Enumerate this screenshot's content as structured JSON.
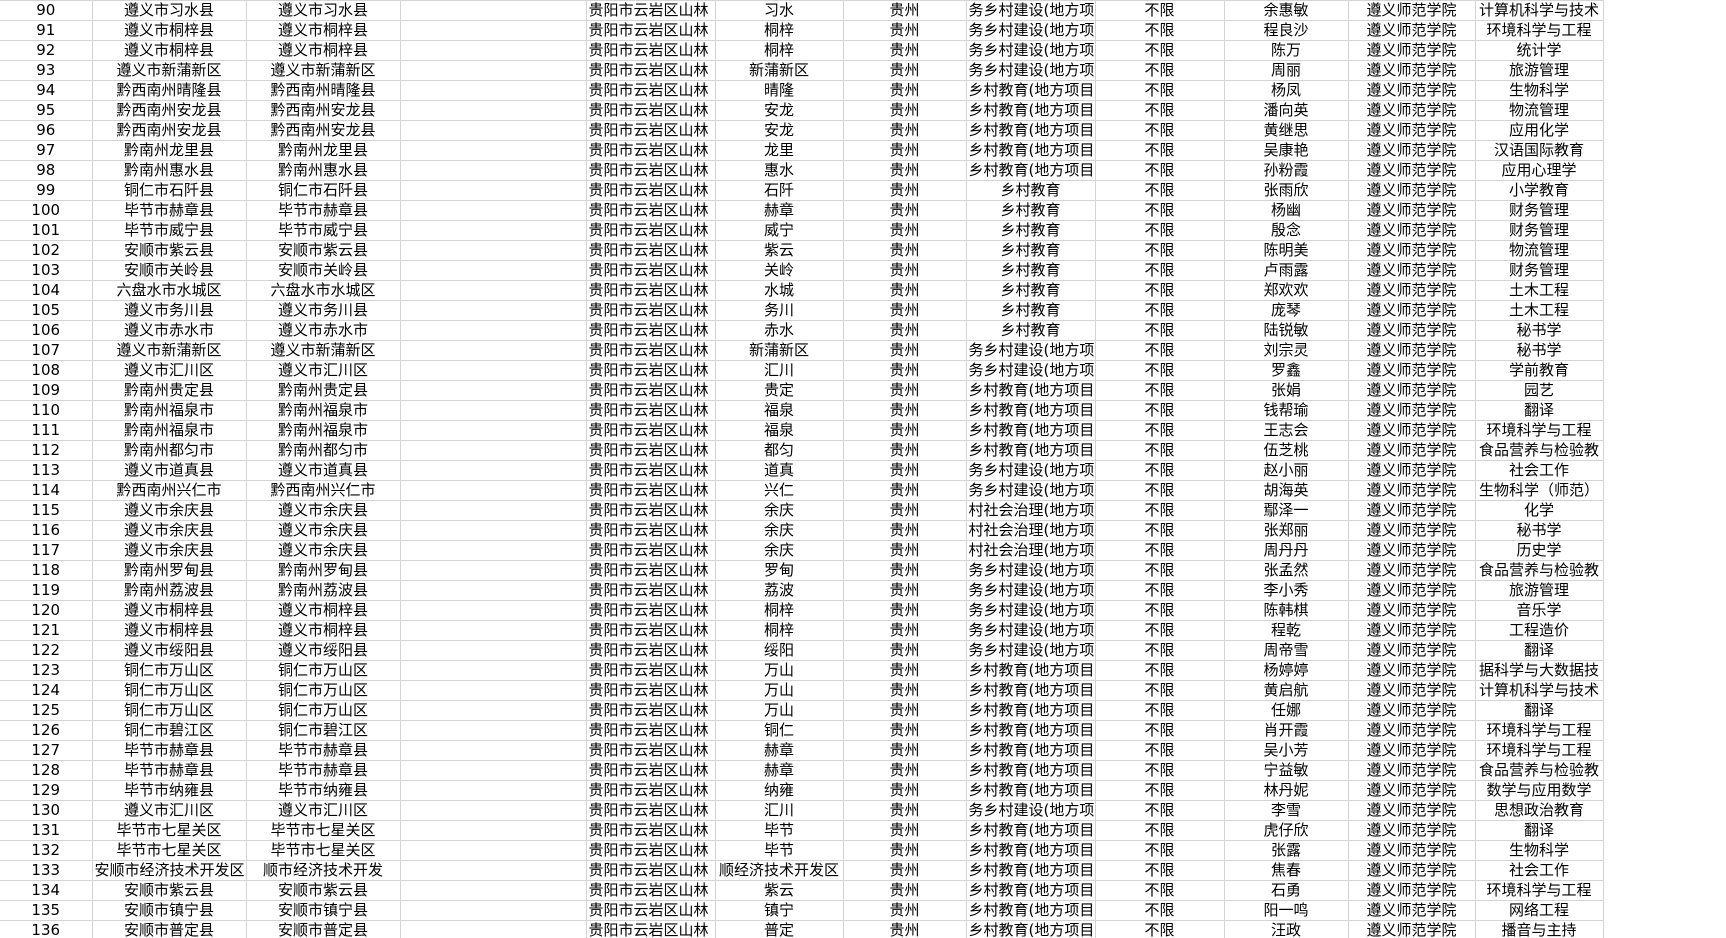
{
  "table": {
    "rows": [
      [
        90,
        "遵义市习水县",
        "遵义市习水县",
        "贵阳市云岩区山林",
        "习水",
        "贵州",
        "务乡村建设(地方项",
        "不限",
        "余惠敏",
        "遵义师范学院",
        "计算机科学与技术"
      ],
      [
        91,
        "遵义市桐梓县",
        "遵义市桐梓县",
        "贵阳市云岩区山林",
        "桐梓",
        "贵州",
        "务乡村建设(地方项",
        "不限",
        "程良沙",
        "遵义师范学院",
        "环境科学与工程"
      ],
      [
        92,
        "遵义市桐梓县",
        "遵义市桐梓县",
        "贵阳市云岩区山林",
        "桐梓",
        "贵州",
        "务乡村建设(地方项",
        "不限",
        "陈万",
        "遵义师范学院",
        "统计学"
      ],
      [
        93,
        "遵义市新蒲新区",
        "遵义市新蒲新区",
        "贵阳市云岩区山林",
        "新蒲新区",
        "贵州",
        "务乡村建设(地方项",
        "不限",
        "周丽",
        "遵义师范学院",
        "旅游管理"
      ],
      [
        94,
        "黔西南州晴隆县",
        "黔西南州晴隆县",
        "贵阳市云岩区山林",
        "晴隆",
        "贵州",
        "乡村教育(地方项目",
        "不限",
        "杨凤",
        "遵义师范学院",
        "生物科学"
      ],
      [
        95,
        "黔西南州安龙县",
        "黔西南州安龙县",
        "贵阳市云岩区山林",
        "安龙",
        "贵州",
        "乡村教育(地方项目",
        "不限",
        "潘向英",
        "遵义师范学院",
        "物流管理"
      ],
      [
        96,
        "黔西南州安龙县",
        "黔西南州安龙县",
        "贵阳市云岩区山林",
        "安龙",
        "贵州",
        "乡村教育(地方项目",
        "不限",
        "黄继思",
        "遵义师范学院",
        "应用化学"
      ],
      [
        97,
        "黔南州龙里县",
        "黔南州龙里县",
        "贵阳市云岩区山林",
        "龙里",
        "贵州",
        "乡村教育(地方项目",
        "不限",
        "吴康艳",
        "遵义师范学院",
        "汉语国际教育"
      ],
      [
        98,
        "黔南州惠水县",
        "黔南州惠水县",
        "贵阳市云岩区山林",
        "惠水",
        "贵州",
        "乡村教育(地方项目",
        "不限",
        "孙粉霞",
        "遵义师范学院",
        "应用心理学"
      ],
      [
        99,
        "铜仁市石阡县",
        "铜仁市石阡县",
        "贵阳市云岩区山林",
        "石阡",
        "贵州",
        "乡村教育",
        "不限",
        "张雨欣",
        "遵义师范学院",
        "小学教育"
      ],
      [
        100,
        "毕节市赫章县",
        "毕节市赫章县",
        "贵阳市云岩区山林",
        "赫章",
        "贵州",
        "乡村教育",
        "不限",
        "杨幽",
        "遵义师范学院",
        "财务管理"
      ],
      [
        101,
        "毕节市威宁县",
        "毕节市威宁县",
        "贵阳市云岩区山林",
        "威宁",
        "贵州",
        "乡村教育",
        "不限",
        "殷念",
        "遵义师范学院",
        "财务管理"
      ],
      [
        102,
        "安顺市紫云县",
        "安顺市紫云县",
        "贵阳市云岩区山林",
        "紫云",
        "贵州",
        "乡村教育",
        "不限",
        "陈明美",
        "遵义师范学院",
        "物流管理"
      ],
      [
        103,
        "安顺市关岭县",
        "安顺市关岭县",
        "贵阳市云岩区山林",
        "关岭",
        "贵州",
        "乡村教育",
        "不限",
        "卢雨露",
        "遵义师范学院",
        "财务管理"
      ],
      [
        104,
        "六盘水市水城区",
        "六盘水市水城区",
        "贵阳市云岩区山林",
        "水城",
        "贵州",
        "乡村教育",
        "不限",
        "郑欢欢",
        "遵义师范学院",
        "土木工程"
      ],
      [
        105,
        "遵义市务川县",
        "遵义市务川县",
        "贵阳市云岩区山林",
        "务川",
        "贵州",
        "乡村教育",
        "不限",
        "庞琴",
        "遵义师范学院",
        "土木工程"
      ],
      [
        106,
        "遵义市赤水市",
        "遵义市赤水市",
        "贵阳市云岩区山林",
        "赤水",
        "贵州",
        "乡村教育",
        "不限",
        "陆锐敏",
        "遵义师范学院",
        "秘书学"
      ],
      [
        107,
        "遵义市新蒲新区",
        "遵义市新蒲新区",
        "贵阳市云岩区山林",
        "新蒲新区",
        "贵州",
        "务乡村建设(地方项",
        "不限",
        "刘宗灵",
        "遵义师范学院",
        "秘书学"
      ],
      [
        108,
        "遵义市汇川区",
        "遵义市汇川区",
        "贵阳市云岩区山林",
        "汇川",
        "贵州",
        "务乡村建设(地方项",
        "不限",
        "罗鑫",
        "遵义师范学院",
        "学前教育"
      ],
      [
        109,
        "黔南州贵定县",
        "黔南州贵定县",
        "贵阳市云岩区山林",
        "贵定",
        "贵州",
        "乡村教育(地方项目",
        "不限",
        "张娟",
        "遵义师范学院",
        "园艺"
      ],
      [
        110,
        "黔南州福泉市",
        "黔南州福泉市",
        "贵阳市云岩区山林",
        "福泉",
        "贵州",
        "乡村教育(地方项目",
        "不限",
        "钱帮瑜",
        "遵义师范学院",
        "翻译"
      ],
      [
        111,
        "黔南州福泉市",
        "黔南州福泉市",
        "贵阳市云岩区山林",
        "福泉",
        "贵州",
        "乡村教育(地方项目",
        "不限",
        "王志会",
        "遵义师范学院",
        "环境科学与工程"
      ],
      [
        112,
        "黔南州都匀市",
        "黔南州都匀市",
        "贵阳市云岩区山林",
        "都匀",
        "贵州",
        "乡村教育(地方项目",
        "不限",
        "伍芝桃",
        "遵义师范学院",
        "食品营养与检验教"
      ],
      [
        113,
        "遵义市道真县",
        "遵义市道真县",
        "贵阳市云岩区山林",
        "道真",
        "贵州",
        "务乡村建设(地方项",
        "不限",
        "赵小丽",
        "遵义师范学院",
        "社会工作"
      ],
      [
        114,
        "黔西南州兴仁市",
        "黔西南州兴仁市",
        "贵阳市云岩区山林",
        "兴仁",
        "贵州",
        "务乡村建设(地方项",
        "不限",
        "胡海英",
        "遵义师范学院",
        "生物科学（师范）"
      ],
      [
        115,
        "遵义市余庆县",
        "遵义市余庆县",
        "贵阳市云岩区山林",
        "余庆",
        "贵州",
        "村社会治理(地方项",
        "不限",
        "鄢泽一",
        "遵义师范学院",
        "化学"
      ],
      [
        116,
        "遵义市余庆县",
        "遵义市余庆县",
        "贵阳市云岩区山林",
        "余庆",
        "贵州",
        "村社会治理(地方项",
        "不限",
        "张郑丽",
        "遵义师范学院",
        "秘书学"
      ],
      [
        117,
        "遵义市余庆县",
        "遵义市余庆县",
        "贵阳市云岩区山林",
        "余庆",
        "贵州",
        "村社会治理(地方项",
        "不限",
        "周丹丹",
        "遵义师范学院",
        "历史学"
      ],
      [
        118,
        "黔南州罗甸县",
        "黔南州罗甸县",
        "贵阳市云岩区山林",
        "罗甸",
        "贵州",
        "务乡村建设(地方项",
        "不限",
        "张孟然",
        "遵义师范学院",
        "食品营养与检验教"
      ],
      [
        119,
        "黔南州荔波县",
        "黔南州荔波县",
        "贵阳市云岩区山林",
        "荔波",
        "贵州",
        "务乡村建设(地方项",
        "不限",
        "李小秀",
        "遵义师范学院",
        "旅游管理"
      ],
      [
        120,
        "遵义市桐梓县",
        "遵义市桐梓县",
        "贵阳市云岩区山林",
        "桐梓",
        "贵州",
        "务乡村建设(地方项",
        "不限",
        "陈韩棋",
        "遵义师范学院",
        "音乐学"
      ],
      [
        121,
        "遵义市桐梓县",
        "遵义市桐梓县",
        "贵阳市云岩区山林",
        "桐梓",
        "贵州",
        "务乡村建设(地方项",
        "不限",
        "程乾",
        "遵义师范学院",
        "工程造价"
      ],
      [
        122,
        "遵义市绥阳县",
        "遵义市绥阳县",
        "贵阳市云岩区山林",
        "绥阳",
        "贵州",
        "务乡村建设(地方项",
        "不限",
        "周帝雪",
        "遵义师范学院",
        "翻译"
      ],
      [
        123,
        "铜仁市万山区",
        "铜仁市万山区",
        "贵阳市云岩区山林",
        "万山",
        "贵州",
        "乡村教育(地方项目",
        "不限",
        "杨婷婷",
        "遵义师范学院",
        "据科学与大数据技"
      ],
      [
        124,
        "铜仁市万山区",
        "铜仁市万山区",
        "贵阳市云岩区山林",
        "万山",
        "贵州",
        "乡村教育(地方项目",
        "不限",
        "黄启航",
        "遵义师范学院",
        "计算机科学与技术"
      ],
      [
        125,
        "铜仁市万山区",
        "铜仁市万山区",
        "贵阳市云岩区山林",
        "万山",
        "贵州",
        "乡村教育(地方项目",
        "不限",
        "任娜",
        "遵义师范学院",
        "翻译"
      ],
      [
        126,
        "铜仁市碧江区",
        "铜仁市碧江区",
        "贵阳市云岩区山林",
        "铜仁",
        "贵州",
        "乡村教育(地方项目",
        "不限",
        "肖开霞",
        "遵义师范学院",
        "环境科学与工程"
      ],
      [
        127,
        "毕节市赫章县",
        "毕节市赫章县",
        "贵阳市云岩区山林",
        "赫章",
        "贵州",
        "乡村教育(地方项目",
        "不限",
        "吴小芳",
        "遵义师范学院",
        "环境科学与工程"
      ],
      [
        128,
        "毕节市赫章县",
        "毕节市赫章县",
        "贵阳市云岩区山林",
        "赫章",
        "贵州",
        "乡村教育(地方项目",
        "不限",
        "宁益敏",
        "遵义师范学院",
        "食品营养与检验教"
      ],
      [
        129,
        "毕节市纳雍县",
        "毕节市纳雍县",
        "贵阳市云岩区山林",
        "纳雍",
        "贵州",
        "乡村教育(地方项目",
        "不限",
        "林丹妮",
        "遵义师范学院",
        "数学与应用数学"
      ],
      [
        130,
        "遵义市汇川区",
        "遵义市汇川区",
        "贵阳市云岩区山林",
        "汇川",
        "贵州",
        "务乡村建设(地方项",
        "不限",
        "李雪",
        "遵义师范学院",
        "思想政治教育"
      ],
      [
        131,
        "毕节市七星关区",
        "毕节市七星关区",
        "贵阳市云岩区山林",
        "毕节",
        "贵州",
        "乡村教育(地方项目",
        "不限",
        "虎仔欣",
        "遵义师范学院",
        "翻译"
      ],
      [
        132,
        "毕节市七星关区",
        "毕节市七星关区",
        "贵阳市云岩区山林",
        "毕节",
        "贵州",
        "乡村教育(地方项目",
        "不限",
        "张露",
        "遵义师范学院",
        "生物科学"
      ],
      [
        133,
        "安顺市经济技术开发区",
        "顺市经济技术开发",
        "贵阳市云岩区山林",
        "顺经济技术开发区",
        "贵州",
        "乡村教育(地方项目",
        "不限",
        "焦春",
        "遵义师范学院",
        "社会工作"
      ],
      [
        134,
        "安顺市紫云县",
        "安顺市紫云县",
        "贵阳市云岩区山林",
        "紫云",
        "贵州",
        "乡村教育(地方项目",
        "不限",
        "石勇",
        "遵义师范学院",
        "环境科学与工程"
      ],
      [
        135,
        "安顺市镇宁县",
        "安顺市镇宁县",
        "贵阳市云岩区山林",
        "镇宁",
        "贵州",
        "乡村教育(地方项目",
        "不限",
        "阳一鸣",
        "遵义师范学院",
        "网络工程"
      ],
      [
        136,
        "安顺市普定县",
        "安顺市普定县",
        "贵阳市云岩区山林",
        "普定",
        "贵州",
        "乡村教育(地方项目",
        "不限",
        "汪政",
        "遵义师范学院",
        "播音与主持"
      ]
    ]
  }
}
